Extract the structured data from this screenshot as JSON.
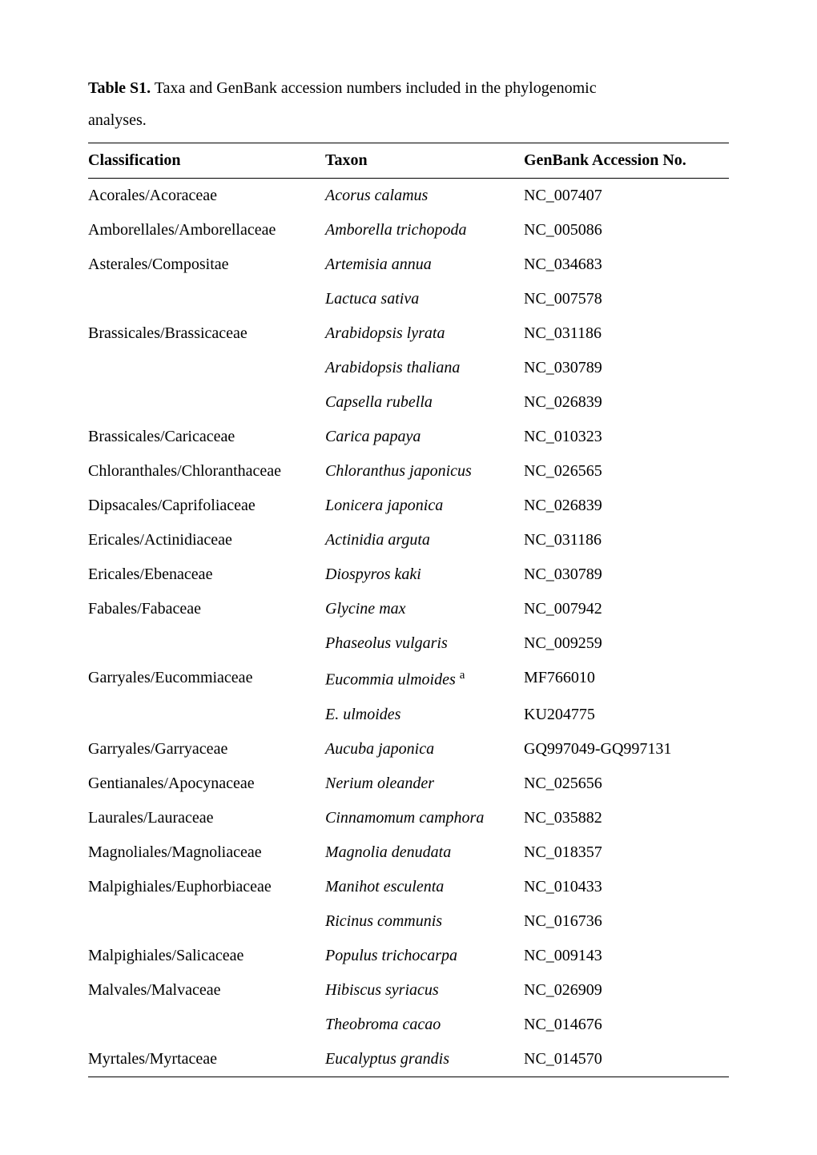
{
  "caption": {
    "label": "Table S1.",
    "text_before_linebreak": " Taxa and GenBank accession numbers included in the phylogenomic",
    "text_after_linebreak": "analyses."
  },
  "table": {
    "headers": {
      "classification": "Classification",
      "taxon": "Taxon",
      "accession": "GenBank Accession No."
    },
    "rows": [
      {
        "classification": "Acorales/Acoraceae",
        "taxon": "Acorus calamus",
        "sup": "",
        "accession": "NC_007407"
      },
      {
        "classification": "Amborellales/Amborellaceae",
        "taxon": "Amborella trichopoda",
        "sup": "",
        "accession": "NC_005086"
      },
      {
        "classification": "Asterales/Compositae",
        "taxon": "Artemisia annua",
        "sup": "",
        "accession": "NC_034683"
      },
      {
        "classification": "",
        "taxon": "Lactuca sativa",
        "sup": "",
        "accession": "NC_007578"
      },
      {
        "classification": "Brassicales/Brassicaceae",
        "taxon": "Arabidopsis lyrata",
        "sup": "",
        "accession": "NC_031186"
      },
      {
        "classification": "",
        "taxon": "Arabidopsis thaliana",
        "sup": "",
        "accession": "NC_030789"
      },
      {
        "classification": "",
        "taxon": "Capsella rubella",
        "sup": "",
        "accession": "NC_026839"
      },
      {
        "classification": "Brassicales/Caricaceae",
        "taxon": "Carica papaya",
        "sup": "",
        "accession": "NC_010323"
      },
      {
        "classification": "Chloranthales/Chloranthaceae",
        "taxon": "Chloranthus japonicus",
        "sup": "",
        "accession": "NC_026565"
      },
      {
        "classification": "Dipsacales/Caprifoliaceae",
        "taxon": "Lonicera japonica",
        "sup": "",
        "accession": "NC_026839"
      },
      {
        "classification": "Ericales/Actinidiaceae",
        "taxon": "Actinidia arguta",
        "sup": "",
        "accession": "NC_031186"
      },
      {
        "classification": "Ericales/Ebenaceae",
        "taxon": "Diospyros kaki",
        "sup": "",
        "accession": "NC_030789"
      },
      {
        "classification": "Fabales/Fabaceae",
        "taxon": "Glycine max",
        "sup": "",
        "accession": "NC_007942"
      },
      {
        "classification": "",
        "taxon": "Phaseolus vulgaris",
        "sup": "",
        "accession": "NC_009259"
      },
      {
        "classification": "Garryales/Eucommiaceae",
        "taxon": "Eucommia ulmoides",
        "sup": "a",
        "accession": "MF766010"
      },
      {
        "classification": "",
        "taxon": "E. ulmoides",
        "sup": "",
        "accession": "KU204775"
      },
      {
        "classification": "Garryales/Garryaceae",
        "taxon": "Aucuba japonica",
        "sup": "",
        "accession": "GQ997049-GQ997131"
      },
      {
        "classification": "Gentianales/Apocynaceae",
        "taxon": "Nerium oleander",
        "sup": "",
        "accession": "NC_025656"
      },
      {
        "classification": "Laurales/Lauraceae",
        "taxon": "Cinnamomum camphora",
        "sup": "",
        "accession": "NC_035882"
      },
      {
        "classification": "Magnoliales/Magnoliaceae",
        "taxon": "Magnolia denudata",
        "sup": "",
        "accession": "NC_018357"
      },
      {
        "classification": "Malpighiales/Euphorbiaceae",
        "taxon": "Manihot esculenta",
        "sup": "",
        "accession": "NC_010433"
      },
      {
        "classification": "",
        "taxon": "Ricinus communis",
        "sup": "",
        "accession": "NC_016736"
      },
      {
        "classification": "Malpighiales/Salicaceae",
        "taxon": "Populus trichocarpa",
        "sup": "",
        "accession": "NC_009143"
      },
      {
        "classification": "Malvales/Malvaceae",
        "taxon": "Hibiscus syriacus",
        "sup": "",
        "accession": "NC_026909"
      },
      {
        "classification": "",
        "taxon": "Theobroma cacao",
        "sup": "",
        "accession": "NC_014676"
      },
      {
        "classification": "Myrtales/Myrtaceae",
        "taxon": "Eucalyptus grandis",
        "sup": "",
        "accession": "NC_014570"
      }
    ]
  }
}
